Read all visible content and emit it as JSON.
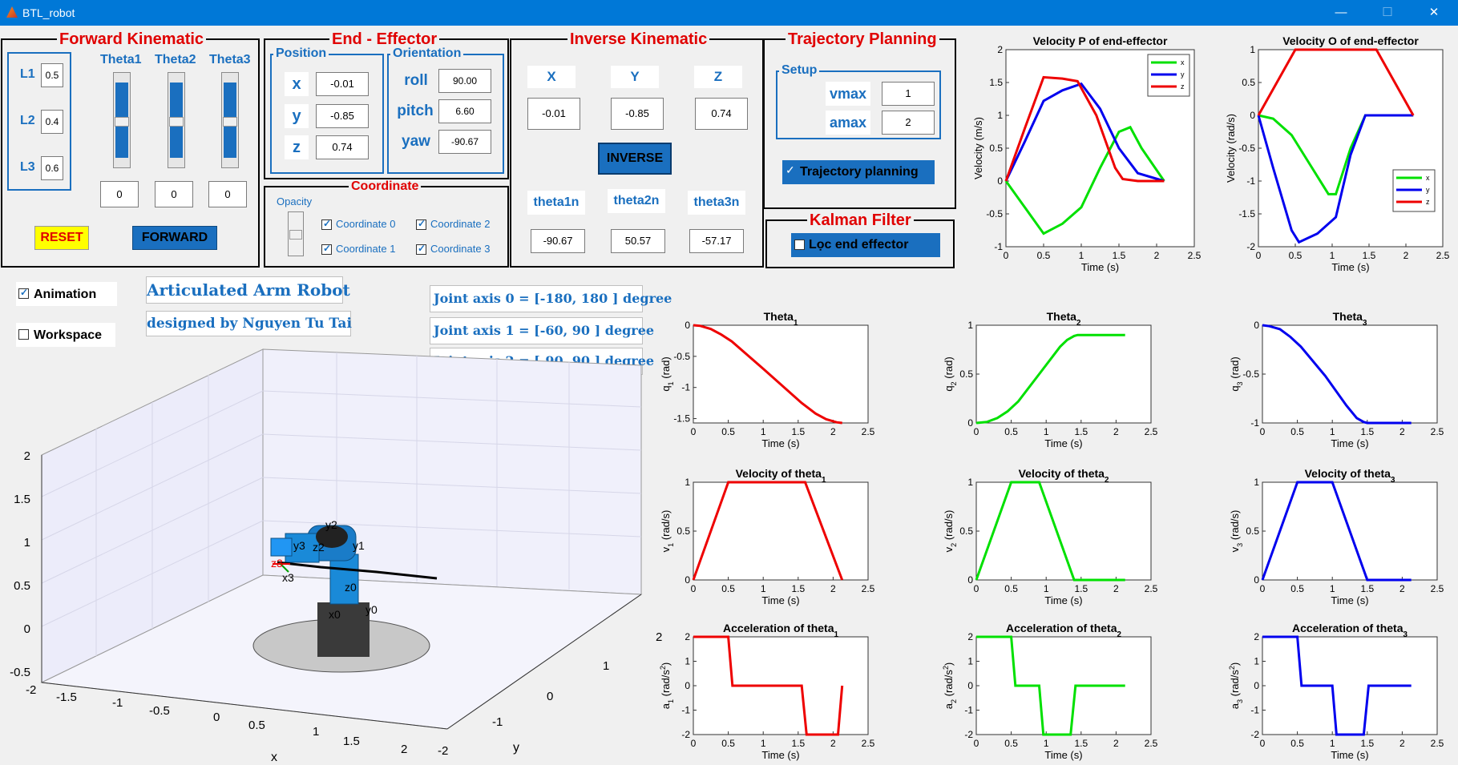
{
  "window": {
    "title": "BTL_robot",
    "minimize_glyph": "—",
    "maximize_glyph": "☐",
    "close_glyph": "✕",
    "app_icon": "matlab-icon"
  },
  "fk": {
    "title": "Forward Kinematic",
    "links": [
      {
        "label": "L1",
        "value": "0.5"
      },
      {
        "label": "L2",
        "value": "0.4"
      },
      {
        "label": "L3",
        "value": "0.6"
      }
    ],
    "sliders": [
      {
        "label": "Theta1",
        "value": "0",
        "level": 0.5
      },
      {
        "label": "Theta2",
        "value": "0",
        "level": 0.5
      },
      {
        "label": "Theta3",
        "value": "0",
        "level": 0.5
      }
    ],
    "reset_label": "RESET",
    "forward_label": "FORWARD"
  },
  "ee": {
    "title": "End - Effector",
    "position_title": "Position",
    "orientation_title": "Orientation",
    "position": [
      {
        "label": "x",
        "value": "-0.01"
      },
      {
        "label": "y",
        "value": "-0.85"
      },
      {
        "label": "z",
        "value": "0.74"
      }
    ],
    "orientation": [
      {
        "label": "roll",
        "value": "90.00"
      },
      {
        "label": "pitch",
        "value": "6.60"
      },
      {
        "label": "yaw",
        "value": "-90.67"
      }
    ]
  },
  "coord": {
    "title": "Coordinate",
    "opacity_label": "Opacity",
    "checks": [
      {
        "label": "Coordinate 0",
        "checked": true
      },
      {
        "label": "Coordinate 2",
        "checked": true
      },
      {
        "label": "Coordinate 1",
        "checked": true
      },
      {
        "label": "Coordinate 3",
        "checked": true
      }
    ]
  },
  "ik": {
    "title": "Inverse Kinematic",
    "inputs": [
      {
        "label": "X",
        "value": "-0.01"
      },
      {
        "label": "Y",
        "value": "-0.85"
      },
      {
        "label": "Z",
        "value": "0.74"
      }
    ],
    "inverse_label": "INVERSE",
    "outputs": [
      {
        "label": "theta1n",
        "value": "-90.67"
      },
      {
        "label": "theta2n",
        "value": "50.57"
      },
      {
        "label": "theta3n",
        "value": "-57.17"
      }
    ]
  },
  "traj": {
    "title": "Trajectory Planning",
    "setup_title": "Setup",
    "vmax_label": "vmax",
    "vmax_value": "1",
    "amax_label": "amax",
    "amax_value": "2",
    "check_label": "Trajectory planning"
  },
  "kalman": {
    "title": "Kalman Filter",
    "check_label": "Lọc end effector"
  },
  "options": {
    "animation_label": "Animation",
    "workspace_label": "Workspace"
  },
  "info": {
    "title": "Articulated Arm Robot",
    "author": "designed by Nguyen Tu Tai",
    "joints": [
      "Joint axis 0 = [-180, 180 ] degree",
      "Joint axis 1 = [-60, 90 ] degree",
      "Joint axis 2 = [-90, 90 ] degree"
    ]
  },
  "plot3d": {
    "z_ticks": [
      "2",
      "1.5",
      "1",
      "0.5",
      "0",
      "-0.5"
    ],
    "x_ticks": [
      "-2",
      "-1.5",
      "-1",
      "-0.5",
      "0",
      "0.5",
      "1",
      "1.5",
      "2"
    ],
    "y_ticks": [
      "2",
      "1",
      "0",
      "-1",
      "-2"
    ],
    "xlabel": "x",
    "ylabel": "y",
    "frame_labels": [
      "y2",
      "y3",
      "z2",
      "y1",
      "z3",
      "x3",
      "z0",
      "x0",
      "y0"
    ]
  },
  "colors": {
    "x": "#00e000",
    "y": "#0000ee",
    "z": "#ee0000",
    "accent": "#1a6fbf",
    "reset_bg": "#ffff00",
    "titlebar": "#0078d7"
  },
  "chart_data": [
    {
      "id": "velP",
      "type": "line",
      "title": "Velocity P of end-effector",
      "xlabel": "Time (s)",
      "ylabel": "Velocity (m/s)",
      "xlim": [
        0,
        2.5
      ],
      "ylim": [
        -1,
        2
      ],
      "xticks": [
        "0",
        "0.5",
        "1",
        "1.5",
        "2",
        "2.5"
      ],
      "yticks": [
        "2",
        "1.5",
        "1",
        "0.5",
        "0",
        "-0.5",
        "-1"
      ],
      "legend": [
        "x",
        "y",
        "z"
      ],
      "legend_position": "top-right",
      "series": [
        {
          "name": "x",
          "color": "#00e000",
          "x": [
            0,
            0.25,
            0.5,
            0.75,
            1.0,
            1.25,
            1.5,
            1.65,
            1.8,
            2.1
          ],
          "y": [
            0,
            -0.4,
            -0.8,
            -0.65,
            -0.4,
            0.2,
            0.75,
            0.82,
            0.5,
            0
          ]
        },
        {
          "name": "y",
          "color": "#0000ee",
          "x": [
            0,
            0.25,
            0.5,
            0.75,
            1.0,
            1.25,
            1.5,
            1.75,
            2.1
          ],
          "y": [
            0,
            0.6,
            1.22,
            1.38,
            1.48,
            1.1,
            0.5,
            0.12,
            0
          ]
        },
        {
          "name": "z",
          "color": "#ee0000",
          "x": [
            0,
            0.25,
            0.5,
            0.75,
            0.95,
            1.2,
            1.45,
            1.55,
            1.75,
            2.1
          ],
          "y": [
            0,
            0.8,
            1.58,
            1.56,
            1.52,
            1.0,
            0.2,
            0.03,
            0,
            0
          ]
        }
      ]
    },
    {
      "id": "velO",
      "type": "line",
      "title": "Velocity O of end-effector",
      "xlabel": "Time (s)",
      "ylabel": "Velocity (rad/s)",
      "xlim": [
        0,
        2.5
      ],
      "ylim": [
        -2,
        1
      ],
      "xticks": [
        "0",
        "0.5",
        "1",
        "1.5",
        "2",
        "2.5"
      ],
      "yticks": [
        "1",
        "0.5",
        "0",
        "-0.5",
        "-1",
        "-1.5",
        "-2"
      ],
      "legend": [
        "x",
        "y",
        "z"
      ],
      "legend_position": "right",
      "series": [
        {
          "name": "x",
          "color": "#00e000",
          "x": [
            0,
            0.2,
            0.45,
            0.7,
            0.95,
            1.05,
            1.25,
            1.45,
            2.1
          ],
          "y": [
            0,
            -0.05,
            -0.3,
            -0.75,
            -1.2,
            -1.2,
            -0.5,
            0,
            0
          ]
        },
        {
          "name": "y",
          "color": "#0000ee",
          "x": [
            0,
            0.2,
            0.45,
            0.55,
            0.8,
            1.05,
            1.25,
            1.45,
            2.1
          ],
          "y": [
            0,
            -0.8,
            -1.75,
            -1.93,
            -1.8,
            -1.55,
            -0.6,
            0,
            0
          ]
        },
        {
          "name": "z",
          "color": "#ee0000",
          "x": [
            0,
            0.25,
            0.5,
            1.6,
            2.1
          ],
          "y": [
            0,
            0.5,
            1,
            1,
            0
          ]
        }
      ]
    },
    {
      "id": "theta1",
      "type": "line",
      "title": "Theta1",
      "xlabel": "Time (s)",
      "ylabel": "q1 (rad)",
      "xlim": [
        0,
        2.5
      ],
      "ylim": [
        -1.57,
        0
      ],
      "xticks": [
        "0",
        "0.5",
        "1",
        "1.5",
        "2",
        "2.5"
      ],
      "yticks": [
        "0",
        "-0.5",
        "-1",
        "-1.5"
      ],
      "series": [
        {
          "name": "",
          "color": "#ee0000",
          "x": [
            0,
            0.1,
            0.25,
            0.4,
            0.55,
            1.0,
            1.55,
            1.75,
            1.9,
            2.05,
            2.13
          ],
          "y": [
            0,
            -0.01,
            -0.06,
            -0.15,
            -0.26,
            -0.7,
            -1.25,
            -1.42,
            -1.51,
            -1.56,
            -1.57
          ]
        }
      ]
    },
    {
      "id": "theta2",
      "type": "line",
      "title": "Theta2",
      "xlabel": "Time (s)",
      "ylabel": "q2 (rad)",
      "xlim": [
        0,
        2.5
      ],
      "ylim": [
        0,
        1
      ],
      "xticks": [
        "0",
        "0.5",
        "1",
        "1.5",
        "2",
        "2.5"
      ],
      "yticks": [
        "1",
        "0.5",
        "0"
      ],
      "series": [
        {
          "name": "",
          "color": "#00e000",
          "x": [
            0,
            0.15,
            0.3,
            0.45,
            0.6,
            0.9,
            1.2,
            1.3,
            1.4,
            1.45,
            2.13
          ],
          "y": [
            0,
            0.01,
            0.05,
            0.12,
            0.22,
            0.5,
            0.78,
            0.85,
            0.89,
            0.9,
            0.9
          ]
        }
      ]
    },
    {
      "id": "theta3",
      "type": "line",
      "title": "Theta3",
      "xlabel": "Time (s)",
      "ylabel": "q3 (rad)",
      "xlim": [
        0,
        2.5
      ],
      "ylim": [
        -1,
        0
      ],
      "xticks": [
        "0",
        "0.5",
        "1",
        "1.5",
        "2",
        "2.5"
      ],
      "yticks": [
        "0",
        "-0.5",
        "-1"
      ],
      "series": [
        {
          "name": "",
          "color": "#0000ee",
          "x": [
            0,
            0.1,
            0.25,
            0.4,
            0.55,
            0.9,
            1.2,
            1.35,
            1.45,
            1.5,
            2.13
          ],
          "y": [
            0,
            -0.01,
            -0.04,
            -0.12,
            -0.22,
            -0.52,
            -0.82,
            -0.95,
            -0.99,
            -1,
            -1
          ]
        }
      ]
    },
    {
      "id": "vel1",
      "type": "line",
      "title": "Velocity of theta1",
      "xlabel": "Time (s)",
      "ylabel": "v1 (rad/s)",
      "xlim": [
        0,
        2.5
      ],
      "ylim": [
        0,
        1
      ],
      "xticks": [
        "0",
        "0.5",
        "1",
        "1.5",
        "2",
        "2.5"
      ],
      "yticks": [
        "1",
        "0.5",
        "0"
      ],
      "series": [
        {
          "name": "",
          "color": "#ee0000",
          "x": [
            0,
            0.5,
            1.6,
            2.13
          ],
          "y": [
            0,
            1,
            1,
            0
          ]
        }
      ]
    },
    {
      "id": "vel2",
      "type": "line",
      "title": "Velocity of theta2",
      "xlabel": "Time (s)",
      "ylabel": "v2 (rad/s)",
      "xlim": [
        0,
        2.5
      ],
      "ylim": [
        0,
        1
      ],
      "xticks": [
        "0",
        "0.5",
        "1",
        "1.5",
        "2",
        "2.5"
      ],
      "yticks": [
        "1",
        "0.5",
        "0"
      ],
      "series": [
        {
          "name": "",
          "color": "#00e000",
          "x": [
            0,
            0.5,
            0.9,
            1.4,
            2.13
          ],
          "y": [
            0,
            1,
            1,
            0,
            0
          ]
        }
      ]
    },
    {
      "id": "vel3",
      "type": "line",
      "title": "Velocity of theta3",
      "xlabel": "Time (s)",
      "ylabel": "v3 (rad/s)",
      "xlim": [
        0,
        2.5
      ],
      "ylim": [
        0,
        1
      ],
      "xticks": [
        "0",
        "0.5",
        "1",
        "1.5",
        "2",
        "2.5"
      ],
      "yticks": [
        "1",
        "0.5",
        "0"
      ],
      "series": [
        {
          "name": "",
          "color": "#0000ee",
          "x": [
            0,
            0.5,
            1.0,
            1.5,
            2.13
          ],
          "y": [
            0,
            1,
            1,
            0,
            0
          ]
        }
      ]
    },
    {
      "id": "acc1",
      "type": "line",
      "title": "Acceleration of theta1",
      "xlabel": "Time (s)",
      "ylabel": "a1 (rad/s2)",
      "xlim": [
        0,
        2.5
      ],
      "ylim": [
        -2,
        2
      ],
      "xticks": [
        "0",
        "0.5",
        "1",
        "1.5",
        "2",
        "2.5"
      ],
      "yticks": [
        "2",
        "1",
        "0",
        "-1",
        "-2"
      ],
      "series": [
        {
          "name": "",
          "color": "#ee0000",
          "x": [
            0,
            0.5,
            0.56,
            1.55,
            1.62,
            2.07,
            2.13
          ],
          "y": [
            2,
            2,
            0,
            0,
            -2,
            -2,
            0
          ]
        }
      ]
    },
    {
      "id": "acc2",
      "type": "line",
      "title": "Acceleration of theta2",
      "xlabel": "Time (s)",
      "ylabel": "a2 (rad/s2)",
      "xlim": [
        0,
        2.5
      ],
      "ylim": [
        -2,
        2
      ],
      "xticks": [
        "0",
        "0.5",
        "1",
        "1.5",
        "2",
        "2.5"
      ],
      "yticks": [
        "2",
        "1",
        "0",
        "-1",
        "-2"
      ],
      "series": [
        {
          "name": "",
          "color": "#00e000",
          "x": [
            0,
            0.5,
            0.56,
            0.9,
            0.96,
            1.35,
            1.42,
            2.13
          ],
          "y": [
            2,
            2,
            0,
            0,
            -2,
            -2,
            0,
            0
          ]
        }
      ]
    },
    {
      "id": "acc3",
      "type": "line",
      "title": "Acceleration of theta3",
      "xlabel": "Time (s)",
      "ylabel": "a3 (rad/s2)",
      "xlim": [
        0,
        2.5
      ],
      "ylim": [
        -2,
        2
      ],
      "xticks": [
        "0",
        "0.5",
        "1",
        "1.5",
        "2",
        "2.5"
      ],
      "yticks": [
        "2",
        "1",
        "0",
        "-1",
        "-2"
      ],
      "series": [
        {
          "name": "",
          "color": "#0000ee",
          "x": [
            0,
            0.5,
            0.56,
            1.0,
            1.06,
            1.45,
            1.52,
            2.13
          ],
          "y": [
            2,
            2,
            0,
            0,
            -2,
            -2,
            0,
            0
          ]
        }
      ]
    }
  ]
}
